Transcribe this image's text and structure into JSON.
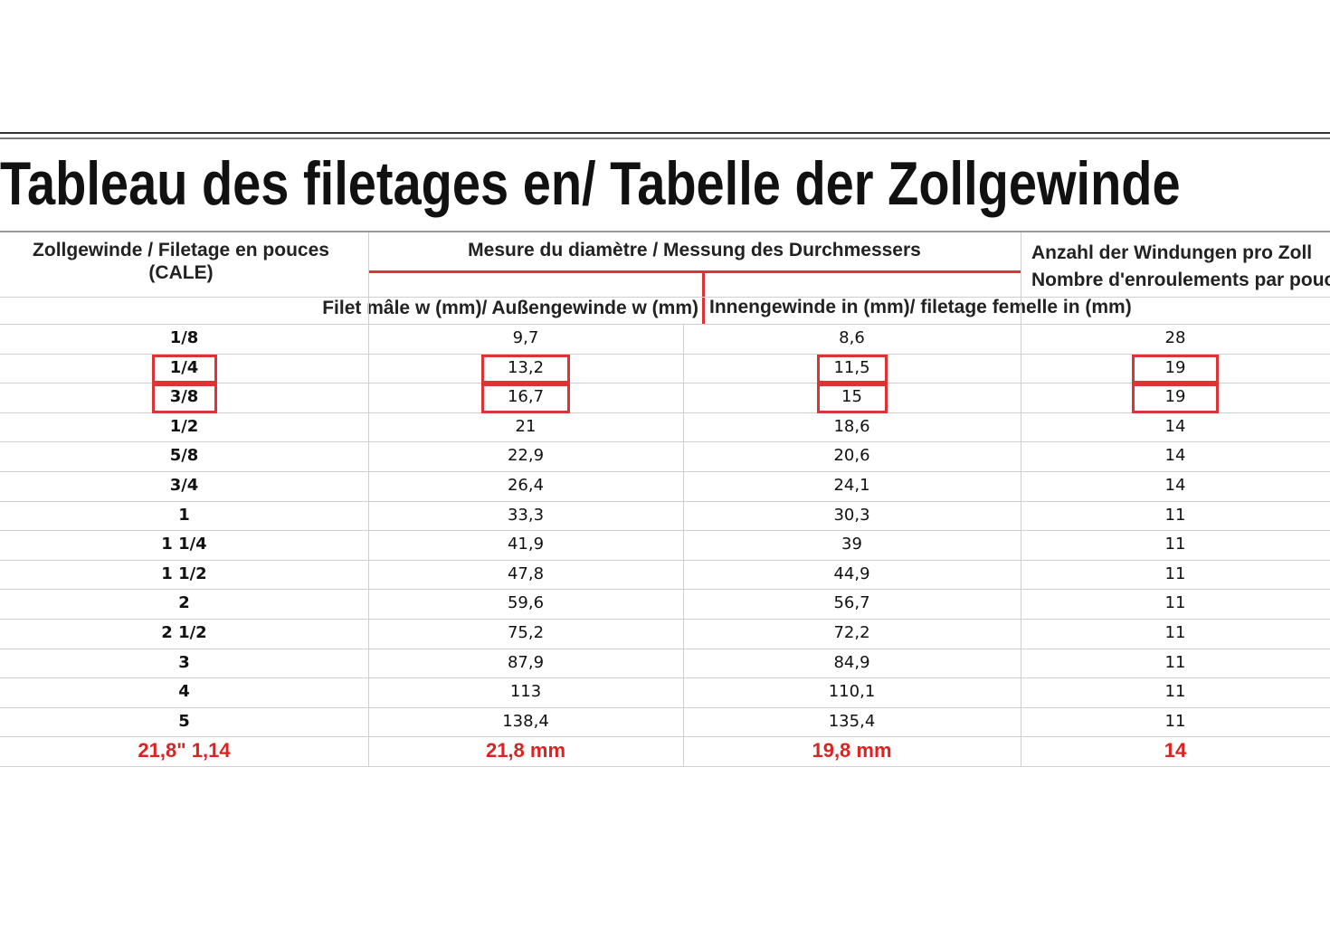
{
  "title": "Tableau des filetages en/ Tabelle der Zollgewinde",
  "table": {
    "header": {
      "inch": [
        "Zollgewinde / Filetage en pouces",
        "(CALE)"
      ],
      "diameter": "Mesure du diamètre / Messung des Durchmessers",
      "threads": [
        "Anzahl der Windungen pro Zoll",
        "Nombre d'enroulements par pouce"
      ]
    },
    "subheader": [
      "Filet mâle w (mm)/ Außengewinde w (mm)",
      "Innengewinde in (mm)/ filetage femelle in (mm)"
    ],
    "rows": [
      [
        "1/8",
        "9,7",
        "8,6",
        "28"
      ],
      [
        "1/4",
        "13,2",
        "11,5",
        "19"
      ],
      [
        "3/8",
        "16,7",
        "15",
        "19"
      ],
      [
        "1/2",
        "21",
        "18,6",
        "14"
      ],
      [
        "5/8",
        "22,9",
        "20,6",
        "14"
      ],
      [
        "3/4",
        "26,4",
        "24,1",
        "14"
      ],
      [
        "1",
        "33,3",
        "30,3",
        "11"
      ],
      [
        "1 1/4",
        "41,9",
        "39",
        "11"
      ],
      [
        "1 1/2",
        "47,8",
        "44,9",
        "11"
      ],
      [
        "2",
        "59,6",
        "56,7",
        "11"
      ],
      [
        "2 1/2",
        "75,2",
        "72,2",
        "11"
      ],
      [
        "3",
        "87,9",
        "84,9",
        "11"
      ],
      [
        "4",
        "113",
        "110,1",
        "11"
      ],
      [
        "5",
        "138,4",
        "135,4",
        "11"
      ]
    ],
    "result": [
      "21,8\" 1,14",
      "21,8 mm",
      "19,8 mm",
      "14"
    ]
  }
}
